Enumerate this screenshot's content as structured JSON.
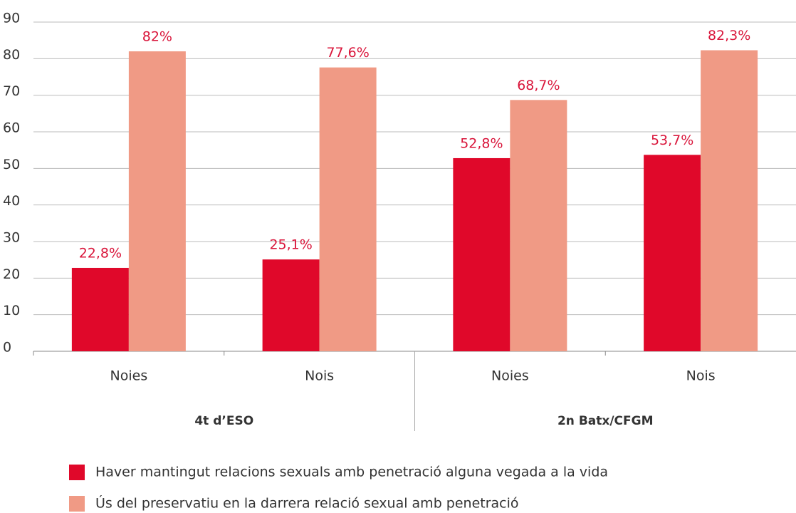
{
  "chart_data": {
    "type": "bar",
    "categories": [
      "Noies",
      "Nois",
      "Noies",
      "Nois"
    ],
    "groups": [
      "4t d’ESO",
      "2n Batx/CFGM"
    ],
    "series": [
      {
        "name": "Haver mantingut relacions sexuals amb penetració alguna vegada a la vida",
        "color": "#e0082a",
        "values": [
          22.8,
          25.1,
          52.8,
          53.7
        ],
        "value_labels": [
          "22,8%",
          "25,1%",
          "52,8%",
          "53,7%"
        ]
      },
      {
        "name": "Ús del preservatiu en la darrera relació sexual amb penetració",
        "color": "#f09a85",
        "values": [
          82,
          77.6,
          68.7,
          82.3
        ],
        "value_labels": [
          "82%",
          "77,6%",
          "68,7%",
          "82,3%"
        ]
      }
    ],
    "ylim": [
      0,
      90
    ],
    "yticks": [
      0,
      10,
      20,
      30,
      40,
      50,
      60,
      70,
      80,
      90
    ],
    "grid": true,
    "value_label_color": "#d9153a"
  }
}
